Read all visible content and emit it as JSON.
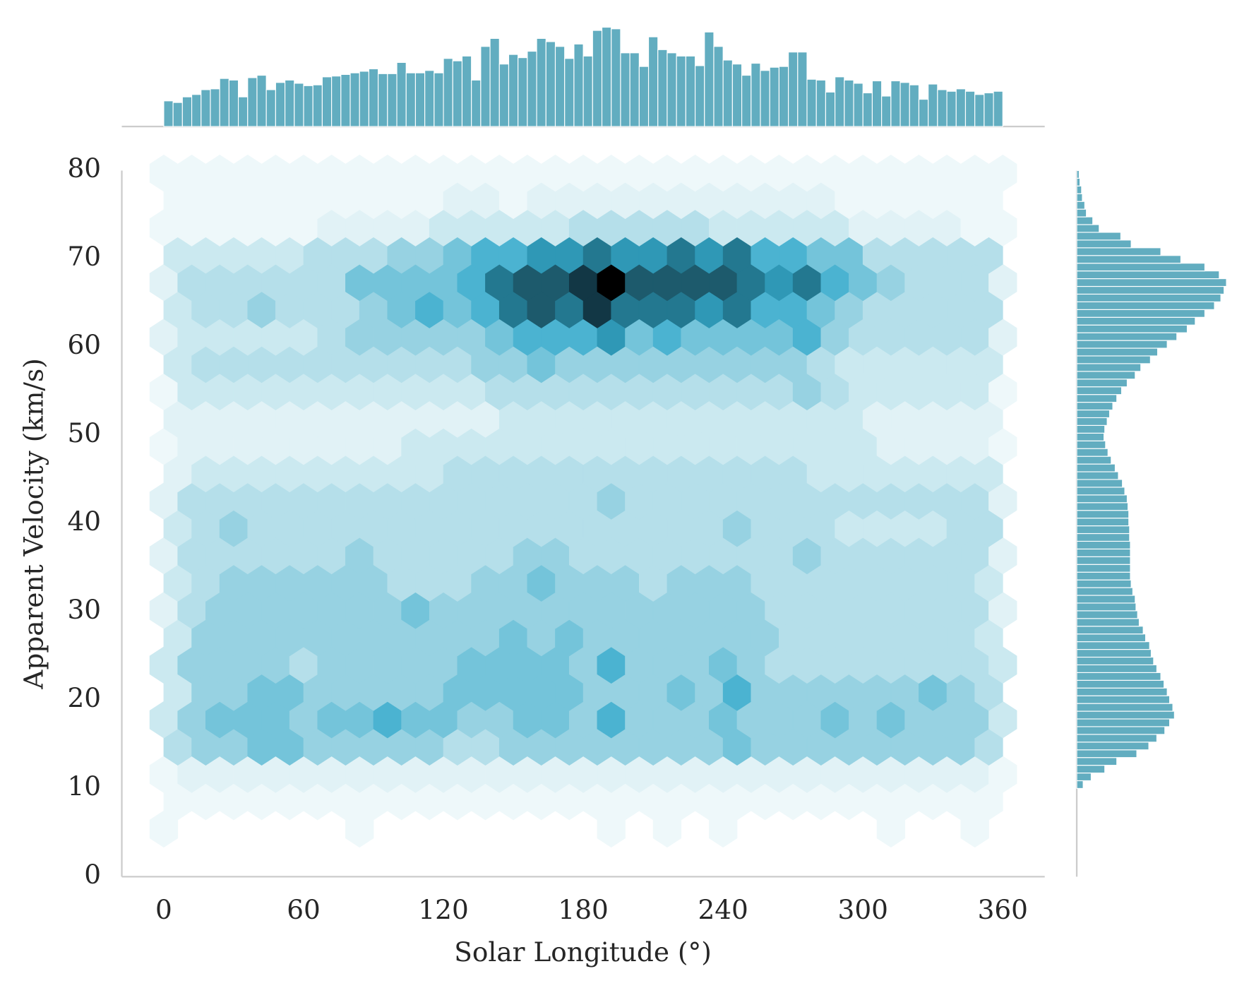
{
  "chart_data": [
    {
      "type": "hexbin",
      "xlabel": "Solar Longitude (°)",
      "ylabel": "Apparent Velocity (km/s)",
      "xlim": [
        -18,
        378
      ],
      "ylim": [
        0,
        80
      ],
      "xticks": [
        0,
        60,
        120,
        180,
        240,
        300,
        360
      ],
      "yticks": [
        0,
        10,
        20,
        30,
        40,
        50,
        60,
        70,
        80
      ],
      "extent": [
        0,
        360,
        5.4,
        79.7
      ],
      "gridsize": 30,
      "cmap": [
        "#eef8fa",
        "#e1f2f6",
        "#cbe9f0",
        "#b5dfea",
        "#97d2e2",
        "#74c4da",
        "#4bb3d1",
        "#2f98b6",
        "#237890",
        "#1d5a6c",
        "#123745",
        "#000000"
      ],
      "rows": [
        [
          1,
          null,
          null,
          null,
          null,
          null,
          null,
          1,
          null,
          null,
          null,
          null,
          null,
          null,
          null,
          null,
          1,
          null,
          1,
          null,
          1,
          null,
          null,
          null,
          null,
          null,
          1,
          null,
          null,
          1,
          null
        ],
        [
          1,
          1,
          1,
          1,
          1,
          1,
          1,
          1,
          1,
          1,
          1,
          1,
          1,
          1,
          1,
          1,
          1,
          1,
          1,
          1,
          1,
          1,
          1,
          1,
          1,
          1,
          1,
          1,
          1,
          1
        ],
        [
          1,
          2,
          2,
          2,
          2,
          2,
          2,
          2,
          2,
          2,
          2,
          2,
          2,
          2,
          2,
          2,
          2,
          2,
          2,
          2,
          2,
          2,
          2,
          2,
          2,
          2,
          2,
          2,
          2,
          2,
          1
        ],
        [
          4,
          5,
          5,
          6,
          6,
          5,
          5,
          5,
          5,
          5,
          4,
          4,
          5,
          5,
          5,
          5,
          5,
          5,
          5,
          5,
          6,
          5,
          5,
          5,
          5,
          5,
          5,
          5,
          5,
          4
        ],
        [
          3,
          5,
          6,
          6,
          6,
          5,
          6,
          6,
          7,
          6,
          6,
          5,
          5,
          6,
          6,
          5,
          7,
          5,
          5,
          5,
          6,
          5,
          5,
          5,
          6,
          5,
          6,
          5,
          5,
          5,
          3
        ],
        [
          3,
          5,
          5,
          6,
          6,
          5,
          5,
          5,
          5,
          5,
          6,
          6,
          6,
          6,
          6,
          5,
          5,
          5,
          6,
          5,
          7,
          5,
          5,
          5,
          5,
          5,
          5,
          6,
          5,
          4
        ],
        [
          3,
          5,
          5,
          5,
          5,
          4,
          5,
          5,
          5,
          5,
          5,
          6,
          6,
          6,
          6,
          5,
          7,
          5,
          5,
          5,
          6,
          5,
          4,
          4,
          4,
          4,
          4,
          4,
          4,
          4,
          3
        ],
        [
          3,
          5,
          5,
          5,
          5,
          5,
          5,
          5,
          5,
          5,
          5,
          5,
          6,
          5,
          6,
          5,
          5,
          5,
          5,
          5,
          5,
          5,
          4,
          4,
          4,
          4,
          4,
          4,
          4,
          3
        ],
        [
          2,
          4,
          5,
          5,
          5,
          5,
          5,
          5,
          5,
          6,
          5,
          5,
          5,
          5,
          5,
          5,
          5,
          5,
          5,
          5,
          5,
          5,
          4,
          4,
          4,
          4,
          4,
          4,
          4,
          4,
          2
        ],
        [
          3,
          4,
          5,
          5,
          5,
          5,
          5,
          5,
          4,
          4,
          4,
          5,
          5,
          6,
          5,
          5,
          5,
          4,
          5,
          5,
          5,
          4,
          4,
          4,
          4,
          4,
          4,
          4,
          4,
          3
        ],
        [
          2,
          4,
          4,
          4,
          4,
          4,
          4,
          5,
          4,
          4,
          4,
          4,
          4,
          5,
          5,
          4,
          4,
          4,
          4,
          4,
          4,
          4,
          4,
          5,
          4,
          4,
          4,
          4,
          4,
          4,
          2
        ],
        [
          3,
          4,
          5,
          4,
          4,
          4,
          4,
          4,
          4,
          4,
          4,
          4,
          4,
          4,
          4,
          4,
          4,
          4,
          4,
          4,
          5,
          4,
          4,
          4,
          3,
          3,
          3,
          3,
          4,
          4
        ],
        [
          2,
          4,
          4,
          4,
          4,
          4,
          4,
          4,
          4,
          4,
          4,
          4,
          4,
          4,
          4,
          4,
          5,
          4,
          4,
          4,
          4,
          4,
          4,
          4,
          4,
          4,
          4,
          4,
          4,
          4,
          2
        ],
        [
          2,
          3,
          3,
          3,
          3,
          3,
          3,
          3,
          3,
          3,
          4,
          4,
          4,
          4,
          4,
          4,
          4,
          4,
          4,
          4,
          4,
          4,
          4,
          3,
          3,
          3,
          3,
          3,
          3,
          3
        ],
        [
          1,
          2,
          2,
          2,
          2,
          2,
          2,
          2,
          2,
          3,
          3,
          3,
          3,
          3,
          3,
          3,
          3,
          3,
          3,
          3,
          3,
          3,
          3,
          3,
          3,
          3,
          2,
          2,
          2,
          2,
          1
        ],
        [
          2,
          2,
          2,
          2,
          2,
          2,
          2,
          2,
          2,
          2,
          2,
          2,
          3,
          3,
          3,
          3,
          3,
          3,
          3,
          3,
          3,
          3,
          3,
          3,
          3,
          2,
          2,
          2,
          2,
          2
        ],
        [
          1,
          3,
          3,
          3,
          3,
          3,
          3,
          3,
          3,
          3,
          3,
          3,
          4,
          4,
          4,
          4,
          4,
          4,
          4,
          4,
          4,
          4,
          4,
          5,
          4,
          3,
          3,
          3,
          3,
          3,
          1
        ],
        [
          3,
          4,
          4,
          4,
          4,
          4,
          4,
          4,
          4,
          4,
          4,
          5,
          5,
          6,
          5,
          5,
          5,
          5,
          5,
          5,
          5,
          5,
          5,
          4,
          3,
          3,
          3,
          3,
          3,
          3
        ],
        [
          2,
          3,
          3,
          3,
          3,
          3,
          4,
          5,
          5,
          5,
          5,
          5,
          6,
          7,
          7,
          7,
          8,
          6,
          7,
          6,
          6,
          6,
          6,
          7,
          5,
          4,
          4,
          4,
          4,
          4,
          2
        ],
        [
          3,
          4,
          4,
          5,
          4,
          4,
          4,
          5,
          6,
          7,
          6,
          7,
          9,
          10,
          9,
          11,
          9,
          9,
          9,
          8,
          9,
          7,
          7,
          6,
          5,
          4,
          4,
          4,
          4,
          4
        ],
        [
          2,
          4,
          4,
          4,
          4,
          4,
          4,
          6,
          6,
          6,
          6,
          7,
          9,
          10,
          10,
          11,
          12,
          10,
          10,
          10,
          10,
          9,
          8,
          9,
          7,
          6,
          5,
          4,
          4,
          4,
          2
        ],
        [
          3,
          3,
          3,
          3,
          3,
          4,
          4,
          4,
          5,
          5,
          6,
          7,
          7,
          8,
          8,
          9,
          8,
          8,
          9,
          8,
          9,
          7,
          7,
          6,
          6,
          4,
          4,
          4,
          4,
          4
        ],
        [
          1,
          1,
          1,
          1,
          1,
          1,
          2,
          2,
          2,
          2,
          3,
          3,
          3,
          3,
          3,
          4,
          4,
          4,
          4,
          4,
          3,
          3,
          3,
          3,
          3,
          2,
          2,
          2,
          2,
          1,
          1
        ],
        [
          1,
          1,
          1,
          1,
          1,
          1,
          1,
          1,
          1,
          1,
          2,
          2,
          1,
          2,
          2,
          2,
          2,
          2,
          2,
          2,
          2,
          2,
          2,
          2,
          1,
          1,
          1,
          1,
          1,
          1
        ],
        [
          1,
          1,
          1,
          1,
          1,
          1,
          1,
          1,
          1,
          1,
          1,
          1,
          1,
          1,
          1,
          1,
          1,
          1,
          1,
          1,
          1,
          1,
          1,
          1,
          1,
          1,
          1,
          1,
          1,
          1,
          1
        ]
      ]
    },
    {
      "type": "histogram",
      "orientation": "vertical",
      "color": "#62adc0",
      "ylim": [
        0,
        128
      ],
      "bins": [
        0,
        4,
        8,
        12,
        16,
        20,
        24,
        28,
        32,
        36,
        40,
        44,
        48,
        52,
        56,
        60,
        64,
        68,
        72,
        76,
        80,
        84,
        88,
        92,
        96,
        100,
        104,
        108,
        112,
        116,
        120,
        124,
        128,
        132,
        136,
        140,
        144,
        148,
        152,
        156,
        160,
        164,
        168,
        172,
        176,
        180,
        184,
        188,
        192,
        196,
        200,
        204,
        208,
        212,
        216,
        220,
        224,
        228,
        232,
        236,
        240,
        244,
        248,
        252,
        256,
        260,
        264,
        268,
        272,
        276,
        280,
        284,
        288,
        292,
        296,
        300,
        304,
        308,
        312,
        316,
        320,
        324,
        328,
        332,
        336,
        340,
        344,
        348,
        352,
        356,
        360
      ],
      "values": [
        32,
        30,
        37,
        40,
        46,
        47,
        60,
        58,
        37,
        61,
        64,
        46,
        55,
        58,
        54,
        51,
        52,
        62,
        63,
        65,
        67,
        69,
        72,
        66,
        66,
        80,
        67,
        67,
        70,
        67,
        85,
        82,
        88,
        58,
        100,
        110,
        78,
        90,
        86,
        94,
        110,
        106,
        100,
        85,
        103,
        88,
        120,
        124,
        122,
        92,
        92,
        75,
        112,
        96,
        92,
        88,
        88,
        76,
        118,
        100,
        83,
        78,
        64,
        79,
        70,
        74,
        75,
        93,
        93,
        59,
        58,
        43,
        62,
        58,
        54,
        42,
        57,
        38,
        57,
        55,
        52,
        34,
        53,
        46,
        44,
        47,
        44,
        40,
        42,
        44
      ]
    },
    {
      "type": "histogram",
      "orientation": "horizontal",
      "color": "#62adc0",
      "xlim": [
        0,
        190
      ],
      "bins": [
        10,
        10.875,
        11.75,
        12.625,
        13.5,
        14.375,
        15.25,
        16.125,
        17,
        17.875,
        18.75,
        19.625,
        20.5,
        21.375,
        22.25,
        23.125,
        24,
        24.875,
        25.75,
        26.625,
        27.5,
        28.375,
        29.25,
        30.125,
        31,
        31.875,
        32.75,
        33.625,
        34.5,
        35.375,
        36.25,
        37.125,
        38,
        38.875,
        39.75,
        40.625,
        41.5,
        42.375,
        43.25,
        44.125,
        45,
        45.875,
        46.75,
        47.625,
        48.5,
        49.375,
        50.25,
        51.125,
        52,
        52.875,
        53.75,
        54.625,
        55.5,
        56.375,
        57.25,
        58.125,
        59,
        59.875,
        60.75,
        61.625,
        62.5,
        63.375,
        64.25,
        65.125,
        66,
        66.875,
        67.75,
        68.625,
        69.5,
        70.375,
        71.25,
        72.125,
        73,
        73.875,
        74.75,
        75.625,
        76.5,
        77.375,
        78.25,
        79.125,
        80
      ],
      "values": [
        8,
        18,
        35,
        50,
        75,
        90,
        100,
        110,
        116,
        122,
        120,
        116,
        113,
        109,
        105,
        100,
        96,
        93,
        91,
        86,
        83,
        78,
        76,
        74,
        73,
        70,
        68,
        67,
        67,
        67,
        67,
        67,
        66,
        66,
        65,
        65,
        64,
        63,
        60,
        57,
        52,
        48,
        43,
        39,
        36,
        34,
        35,
        38,
        41,
        45,
        50,
        56,
        63,
        73,
        80,
        92,
        101,
        113,
        125,
        138,
        148,
        160,
        172,
        180,
        184,
        187,
        178,
        160,
        130,
        105,
        68,
        55,
        28,
        20,
        12,
        10,
        7,
        6,
        4,
        3
      ]
    }
  ]
}
